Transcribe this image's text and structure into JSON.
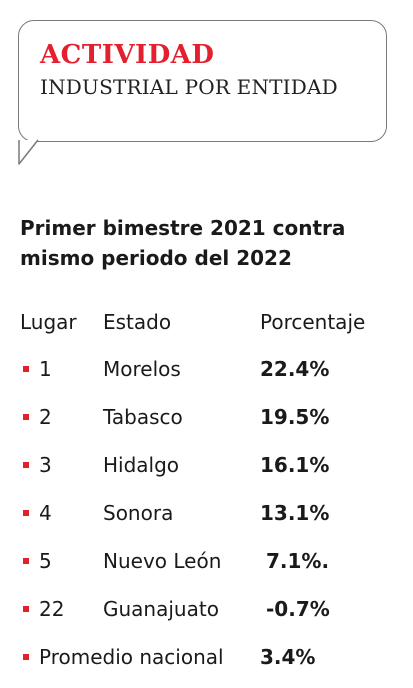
{
  "header": {
    "title": "ACTIVIDAD",
    "subtitle": "INDUSTRIAL POR ENTIDAD"
  },
  "period": "Primer bimestre 2021 contra mismo periodo del 2022",
  "columns": {
    "lugar": "Lugar",
    "estado": "Estado",
    "porcentaje": "Porcentaje"
  },
  "rows": [
    {
      "lugar": "1",
      "estado": "Morelos",
      "porcentaje": "22.4%"
    },
    {
      "lugar": "2",
      "estado": "Tabasco",
      "porcentaje": "19.5%"
    },
    {
      "lugar": "3",
      "estado": "Hidalgo",
      "porcentaje": "16.1%"
    },
    {
      "lugar": "4",
      "estado": "Sonora",
      "porcentaje": "13.1%"
    },
    {
      "lugar": "5",
      "estado": "Nuevo León",
      "porcentaje": "7.1%."
    },
    {
      "lugar": "22",
      "estado": "Guanajuato",
      "porcentaje": "-0.7%"
    }
  ],
  "average": {
    "label": "Promedio nacional",
    "porcentaje": "3.4%"
  },
  "colors": {
    "accent": "#e4202e",
    "text": "#1a1a1a",
    "border": "#7a7a7a"
  }
}
